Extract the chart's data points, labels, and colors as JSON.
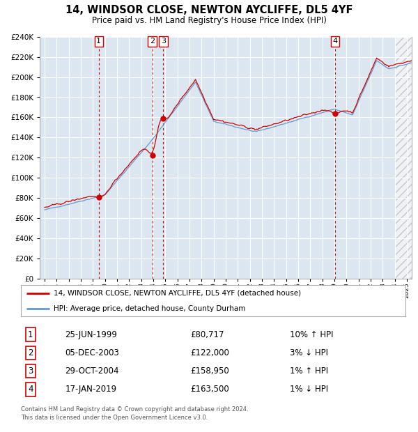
{
  "title": "14, WINDSOR CLOSE, NEWTON AYCLIFFE, DL5 4YF",
  "subtitle": "Price paid vs. HM Land Registry's House Price Index (HPI)",
  "legend_line1": "14, WINDSOR CLOSE, NEWTON AYCLIFFE, DL5 4YF (detached house)",
  "legend_line2": "HPI: Average price, detached house, County Durham",
  "footer_line1": "Contains HM Land Registry data © Crown copyright and database right 2024.",
  "footer_line2": "This data is licensed under the Open Government Licence v3.0.",
  "transactions": [
    {
      "label": "1",
      "date": "25-JUN-1999",
      "price": 80717,
      "pct": "10%",
      "dir": "↑",
      "year": 1999.49
    },
    {
      "label": "2",
      "date": "05-DEC-2003",
      "price": 122000,
      "pct": "3%",
      "dir": "↓",
      "year": 2003.93
    },
    {
      "label": "3",
      "date": "29-OCT-2004",
      "price": 158950,
      "pct": "1%",
      "dir": "↑",
      "year": 2004.83
    },
    {
      "label": "4",
      "date": "17-JAN-2019",
      "price": 163500,
      "pct": "1%",
      "dir": "↓",
      "year": 2019.05
    }
  ],
  "ylim": [
    0,
    240000
  ],
  "xlim_start": 1994.6,
  "xlim_end": 2025.4,
  "hatch_start": 2024.0,
  "plot_bg": "#dce6f1",
  "line_color_red": "#cc0000",
  "line_color_blue": "#6699cc",
  "dashed_color": "#cc0000",
  "grid_color": "#ffffff"
}
